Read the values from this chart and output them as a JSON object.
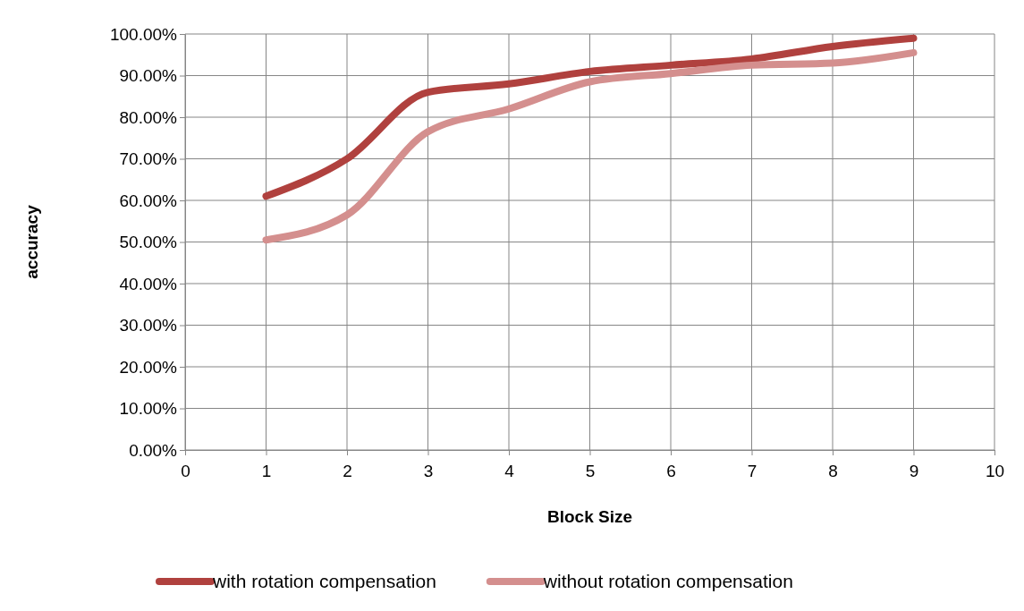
{
  "chart_data": {
    "type": "line",
    "xlabel": "Block Size",
    "ylabel": "accuracy",
    "x": [
      1,
      2,
      3,
      4,
      5,
      6,
      7,
      8,
      9
    ],
    "series": [
      {
        "name": "with rotation compensation",
        "color": "#b0413e",
        "values": [
          61,
          70,
          86,
          88,
          91,
          92.5,
          94,
          97,
          99
        ]
      },
      {
        "name": "without rotation compensation",
        "color": "#d48f8e",
        "values": [
          50.5,
          56.5,
          76.5,
          82,
          88.5,
          90.5,
          92.5,
          93,
          95.5
        ]
      }
    ],
    "xlim": [
      0,
      10
    ],
    "xticks": [
      0,
      1,
      2,
      3,
      4,
      5,
      6,
      7,
      8,
      9,
      10
    ],
    "ylim": [
      0,
      100
    ],
    "yticks": [
      {
        "value": 0,
        "label": "0.00%"
      },
      {
        "value": 10,
        "label": "10.00%"
      },
      {
        "value": 20,
        "label": "20.00%"
      },
      {
        "value": 30,
        "label": "30.00%"
      },
      {
        "value": 40,
        "label": "40.00%"
      },
      {
        "value": 50,
        "label": "50.00%"
      },
      {
        "value": 60,
        "label": "60.00%"
      },
      {
        "value": 70,
        "label": "70.00%"
      },
      {
        "value": 80,
        "label": "80.00%"
      },
      {
        "value": 90,
        "label": "90.00%"
      },
      {
        "value": 100,
        "label": "100.00%"
      }
    ],
    "grid": true,
    "legend": "bottom",
    "marker": "none",
    "line_style": "solid"
  }
}
